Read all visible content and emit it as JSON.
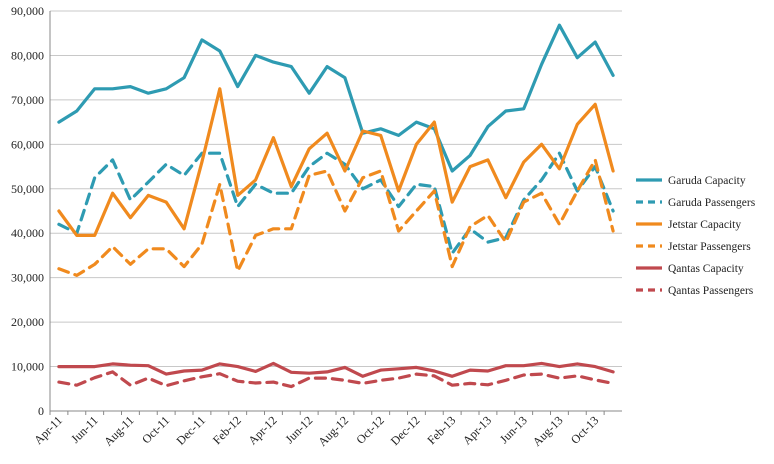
{
  "chart_data": {
    "type": "line",
    "categories": [
      "Apr-11",
      "May-11",
      "Jun-11",
      "Jul-11",
      "Aug-11",
      "Sep-11",
      "Oct-11",
      "Nov-11",
      "Dec-11",
      "Jan-12",
      "Feb-12",
      "Mar-12",
      "Apr-12",
      "May-12",
      "Jun-12",
      "Jul-12",
      "Aug-12",
      "Sep-12",
      "Oct-12",
      "Nov-12",
      "Dec-12",
      "Jan-13",
      "Feb-13",
      "Mar-13",
      "Apr-13",
      "May-13",
      "Jun-13",
      "Jul-13",
      "Aug-13",
      "Sep-13",
      "Oct-13",
      "Nov-13"
    ],
    "x_tick_labels": [
      "Apr-11",
      "Jun-11",
      "Aug-11",
      "Oct-11",
      "Dec-11",
      "Feb-12",
      "Apr-12",
      "Jun-12",
      "Aug-12",
      "Oct-12",
      "Dec-12",
      "Feb-13",
      "Apr-13",
      "Jun-13",
      "Aug-13",
      "Oct-13"
    ],
    "y_ticks": [
      "0",
      "10,000",
      "20,000",
      "30,000",
      "40,000",
      "50,000",
      "60,000",
      "70,000",
      "80,000",
      "90,000"
    ],
    "ylim": [
      0,
      90000
    ],
    "grid": "horizontal",
    "legend_position": "right",
    "series": [
      {
        "name": "Garuda Capacity",
        "color": "#2e9bb2",
        "dash": "solid",
        "values": [
          65000,
          67500,
          72500,
          72500,
          73000,
          71500,
          72500,
          75000,
          83500,
          81000,
          73000,
          80000,
          78500,
          77500,
          71500,
          77500,
          75000,
          62500,
          63500,
          62000,
          65000,
          63500,
          54000,
          57500,
          64000,
          67500,
          68000,
          78000,
          86800,
          79500,
          83000,
          75500
        ]
      },
      {
        "name": "Garuda Passengers",
        "color": "#2e9bb2",
        "dash": "dashed",
        "values": [
          42000,
          40000,
          52500,
          56500,
          47500,
          51500,
          55500,
          53000,
          58000,
          58000,
          46000,
          51000,
          49000,
          49000,
          55000,
          58000,
          55500,
          50000,
          52000,
          46000,
          51000,
          50500,
          35500,
          41000,
          38000,
          39000,
          47500,
          52000,
          58000,
          49500,
          55000,
          45000
        ]
      },
      {
        "name": "Jetstar Capacity",
        "color": "#f08a1e",
        "dash": "solid",
        "values": [
          45000,
          39500,
          39500,
          49000,
          43500,
          48500,
          47000,
          41000,
          56000,
          72500,
          48500,
          52000,
          61500,
          50500,
          59000,
          62500,
          54000,
          63000,
          62000,
          49500,
          60000,
          65000,
          47000,
          55000,
          56500,
          48000,
          56000,
          60000,
          54500,
          64500,
          69000,
          54000
        ]
      },
      {
        "name": "Jetstar Passengers",
        "color": "#f08a1e",
        "dash": "dashed",
        "values": [
          32000,
          30500,
          33000,
          37000,
          33000,
          36500,
          36500,
          32500,
          37500,
          51000,
          31500,
          39500,
          41000,
          41000,
          53000,
          54000,
          45000,
          52500,
          54000,
          40500,
          45000,
          49500,
          32500,
          41500,
          44000,
          38000,
          47000,
          49000,
          42000,
          49500,
          56500,
          40500
        ]
      },
      {
        "name": "Qantas Capacity",
        "color": "#c0494e",
        "dash": "solid",
        "values": [
          10000,
          10000,
          10000,
          10600,
          10300,
          10200,
          8300,
          9000,
          9200,
          10600,
          10000,
          8900,
          10700,
          8700,
          8500,
          8800,
          9800,
          7800,
          9200,
          9500,
          9800,
          9000,
          7800,
          9200,
          9000,
          10200,
          10200,
          10700,
          10000,
          10600,
          10000,
          8800
        ]
      },
      {
        "name": "Qantas Passengers",
        "color": "#c0494e",
        "dash": "dashed",
        "values": [
          6500,
          5800,
          7500,
          8800,
          5800,
          7400,
          5700,
          6800,
          7700,
          8400,
          6700,
          6300,
          6500,
          5500,
          7400,
          7400,
          6900,
          6200,
          6900,
          7400,
          8300,
          7900,
          5800,
          6200,
          5900,
          6900,
          8100,
          8300,
          7400,
          7900,
          7000,
          6200
        ]
      }
    ]
  }
}
